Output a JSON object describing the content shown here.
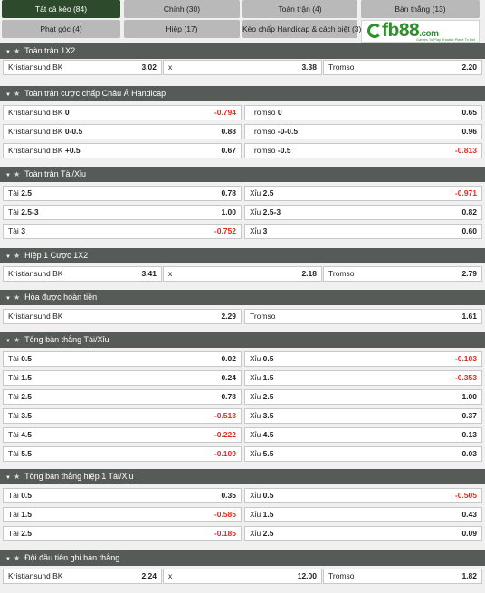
{
  "tabs": [
    {
      "label": "Tất cả kèo (84)",
      "active": true
    },
    {
      "label": "Chính (30)"
    },
    {
      "label": "Toàn trận (4)"
    },
    {
      "label": "Bàn thắng (13)"
    },
    {
      "label": "Phạt góc (4)"
    },
    {
      "label": "Hiệp (17)"
    },
    {
      "label": "Kèo chấp Handicap & cách biệt (3)"
    }
  ],
  "logo": {
    "brand": "fb88",
    "suffix": ".com",
    "tagline": "Games To Play  Trusted Place To Bet"
  },
  "sections": [
    {
      "title": "Toàn trận 1X2",
      "rows": [
        [
          {
            "label": "Kristiansund BK",
            "value": "3.02"
          },
          {
            "label": "x",
            "value": "3.38"
          },
          {
            "label": "Tromso",
            "value": "2.20"
          }
        ]
      ]
    },
    {
      "title": "Toàn trận cược chấp Châu Á Handicap",
      "rows": [
        [
          {
            "label": "Kristiansund BK",
            "line": "0",
            "value": "-0.794"
          },
          {
            "label": "Tromso",
            "line": "0",
            "value": "0.65"
          }
        ],
        [
          {
            "label": "Kristiansund BK",
            "line": "0-0.5",
            "value": "0.88"
          },
          {
            "label": "Tromso",
            "line": "-0-0.5",
            "value": "0.96"
          }
        ],
        [
          {
            "label": "Kristiansund BK",
            "line": "+0.5",
            "value": "0.67"
          },
          {
            "label": "Tromso",
            "line": "-0.5",
            "value": "-0.813"
          }
        ]
      ]
    },
    {
      "title": "Toàn trận Tài/Xỉu",
      "rows": [
        [
          {
            "label": "Tài",
            "line": "2.5",
            "value": "0.78"
          },
          {
            "label": "Xỉu",
            "line": "2.5",
            "value": "-0.971"
          }
        ],
        [
          {
            "label": "Tài",
            "line": "2.5-3",
            "value": "1.00"
          },
          {
            "label": "Xỉu",
            "line": "2.5-3",
            "value": "0.82"
          }
        ],
        [
          {
            "label": "Tài",
            "line": "3",
            "value": "-0.752"
          },
          {
            "label": "Xỉu",
            "line": "3",
            "value": "0.60"
          }
        ]
      ]
    },
    {
      "title": "Hiệp 1 Cược 1X2",
      "rows": [
        [
          {
            "label": "Kristiansund BK",
            "value": "3.41"
          },
          {
            "label": "x",
            "value": "2.18"
          },
          {
            "label": "Tromso",
            "value": "2.79"
          }
        ]
      ]
    },
    {
      "title": "Hòa được hoàn tiền",
      "rows": [
        [
          {
            "label": "Kristiansund BK",
            "value": "2.29"
          },
          {
            "label": "Tromso",
            "value": "1.61"
          }
        ]
      ]
    },
    {
      "title": "Tổng bàn thắng Tài/Xỉu",
      "rows": [
        [
          {
            "label": "Tài",
            "line": "0.5",
            "value": "0.02"
          },
          {
            "label": "Xỉu",
            "line": "0.5",
            "value": "-0.103"
          }
        ],
        [
          {
            "label": "Tài",
            "line": "1.5",
            "value": "0.24"
          },
          {
            "label": "Xỉu",
            "line": "1.5",
            "value": "-0.353"
          }
        ],
        [
          {
            "label": "Tài",
            "line": "2.5",
            "value": "0.78"
          },
          {
            "label": "Xỉu",
            "line": "2.5",
            "value": "1.00"
          }
        ],
        [
          {
            "label": "Tài",
            "line": "3.5",
            "value": "-0.513"
          },
          {
            "label": "Xỉu",
            "line": "3.5",
            "value": "0.37"
          }
        ],
        [
          {
            "label": "Tài",
            "line": "4.5",
            "value": "-0.222"
          },
          {
            "label": "Xỉu",
            "line": "4.5",
            "value": "0.13"
          }
        ],
        [
          {
            "label": "Tài",
            "line": "5.5",
            "value": "-0.109"
          },
          {
            "label": "Xỉu",
            "line": "5.5",
            "value": "0.03"
          }
        ]
      ]
    },
    {
      "title": "Tổng bàn thắng hiệp 1 Tài/Xỉu",
      "rows": [
        [
          {
            "label": "Tài",
            "line": "0.5",
            "value": "0.35"
          },
          {
            "label": "Xỉu",
            "line": "0.5",
            "value": "-0.505"
          }
        ],
        [
          {
            "label": "Tài",
            "line": "1.5",
            "value": "-0.585"
          },
          {
            "label": "Xỉu",
            "line": "1.5",
            "value": "0.43"
          }
        ],
        [
          {
            "label": "Tài",
            "line": "2.5",
            "value": "-0.185"
          },
          {
            "label": "Xỉu",
            "line": "2.5",
            "value": "0.09"
          }
        ]
      ]
    },
    {
      "title": "Đội đầu tiên ghi bàn thắng",
      "rows": [
        [
          {
            "label": "Kristiansund BK",
            "value": "2.24"
          },
          {
            "label": "x",
            "value": "12.00"
          },
          {
            "label": "Tromso",
            "value": "1.82"
          }
        ]
      ]
    }
  ],
  "colors": {
    "active_tab": "#2e4a2c",
    "tab": "#b9b9b9",
    "section_header": "#575b57",
    "negative_value": "#e4291d"
  }
}
